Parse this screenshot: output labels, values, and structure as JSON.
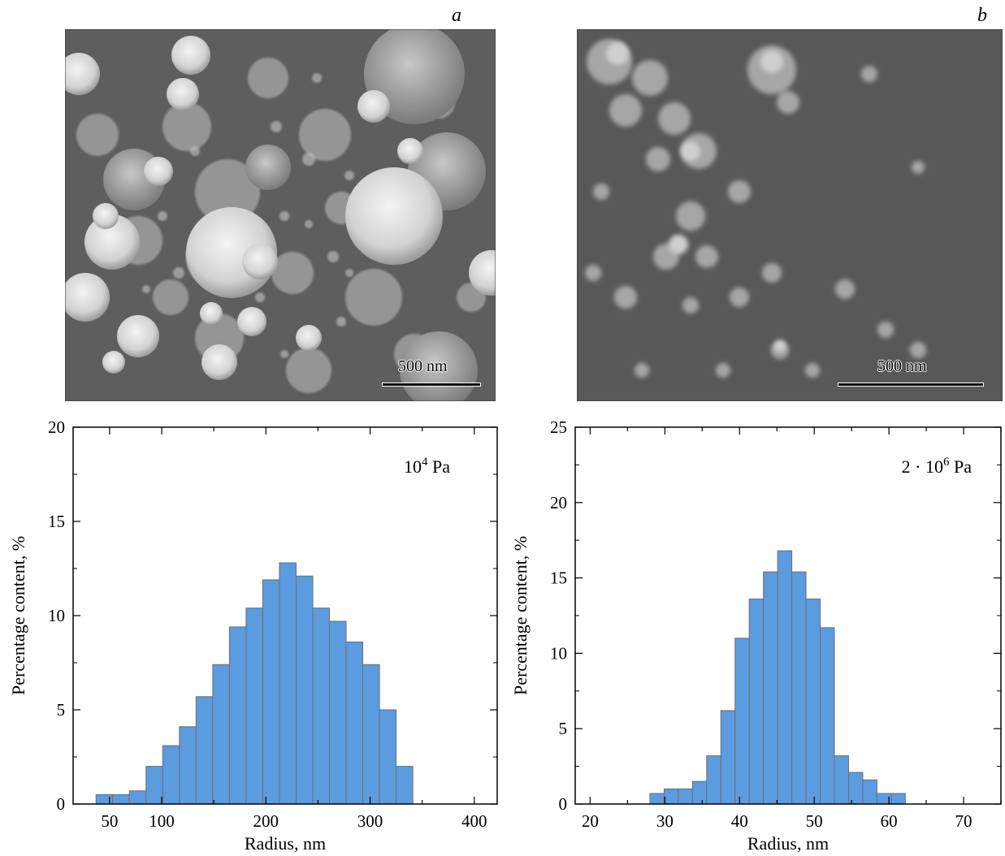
{
  "panels": {
    "a": {
      "letter": "a",
      "scale_label": "500 nm"
    },
    "b": {
      "letter": "b",
      "scale_label": "500 nm"
    }
  },
  "chart_data": [
    {
      "type": "bar",
      "panel": "a",
      "annotation": {
        "base": "10",
        "exp": "4",
        "unit": " Pa"
      },
      "xlabel": "Radius, nm",
      "ylabel": "Percentage content, %",
      "xlim": [
        15,
        422
      ],
      "ylim": [
        0,
        20
      ],
      "xticks": [
        50,
        100,
        150,
        200,
        250,
        300,
        350,
        400
      ],
      "xtick_labels": [
        "50",
        "",
        "100",
        "",
        "200",
        "",
        "300",
        "",
        "400"
      ],
      "xtick_values": [
        50,
        75,
        100,
        150,
        200,
        250,
        300,
        350,
        400
      ],
      "yticks": [
        0,
        5,
        10,
        15,
        20
      ],
      "bin_width": 16,
      "bin_start": 37,
      "values": [
        0.5,
        0.5,
        0.7,
        2.0,
        3.1,
        4.1,
        5.7,
        7.4,
        9.4,
        10.4,
        11.9,
        12.8,
        12.1,
        10.4,
        9.7,
        8.6,
        7.4,
        5.0,
        2.0
      ],
      "bar_color": "#5b9be0"
    },
    {
      "type": "bar",
      "panel": "b",
      "annotation": {
        "base": "2 · 10",
        "exp": "6",
        "unit": " Pa"
      },
      "xlabel": "Radius, nm",
      "ylabel": "Percentage content, %",
      "xlim": [
        18,
        75
      ],
      "ylim": [
        0,
        25
      ],
      "xticks": [
        20,
        30,
        40,
        50,
        60,
        70
      ],
      "yticks": [
        0,
        5,
        10,
        15,
        20,
        25
      ],
      "bin_width": 1.9,
      "bin_start": 28.0,
      "values": [
        0.7,
        1.0,
        1.0,
        1.5,
        3.2,
        6.2,
        11.0,
        13.6,
        15.4,
        16.8,
        15.4,
        13.6,
        11.7,
        3.2,
        2.1,
        1.6,
        0.7,
        0.7
      ],
      "bar_color": "#5b9be0"
    }
  ],
  "colors": {
    "bar": "#5b9be0",
    "bar_edge": "#6e6e6e"
  }
}
